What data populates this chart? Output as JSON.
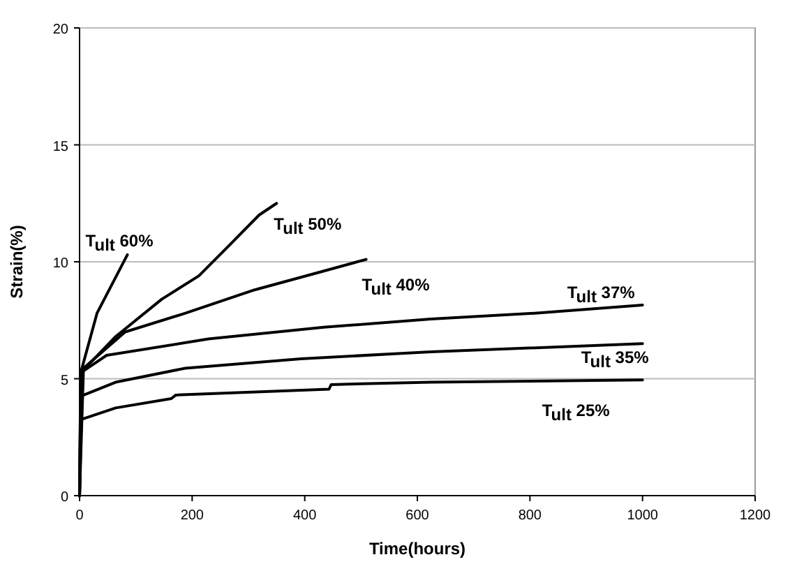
{
  "chart_data": {
    "type": "line",
    "xlabel": "Time(hours)",
    "ylabel": "Strain(%)",
    "xlim": [
      0,
      1200
    ],
    "xticks": [
      0,
      200,
      400,
      600,
      800,
      1000,
      1200
    ],
    "ylim": [
      0,
      20
    ],
    "yticks": [
      0,
      5,
      10,
      15,
      20
    ],
    "grid": "y",
    "line_style": "solid",
    "marker": "none",
    "series": [
      {
        "name": "T$_{ult}$ 60%",
        "color": "#000000",
        "x": [
          0,
          2,
          31,
          85
        ],
        "values": [
          0,
          5.25,
          7.8,
          10.3
        ]
      },
      {
        "name": "T$_{ult}$ 50%",
        "color": "#000000",
        "x": [
          0,
          2,
          64,
          146,
          212,
          270,
          319,
          350
        ],
        "values": [
          0,
          5.25,
          6.8,
          8.4,
          9.4,
          10.8,
          12.0,
          12.5
        ]
      },
      {
        "name": "T$_{ult}$ 40%",
        "color": "#000000",
        "x": [
          0,
          7,
          81,
          188,
          311,
          418,
          509
        ],
        "values": [
          0,
          5.45,
          7.0,
          7.8,
          8.8,
          9.5,
          10.1
        ]
      },
      {
        "name": "T$_{ult}$ 37%",
        "color": "#000000",
        "x": [
          0,
          5,
          48,
          229,
          434,
          624,
          808,
          1000
        ],
        "values": [
          0,
          5.3,
          6.0,
          6.7,
          7.2,
          7.55,
          7.8,
          8.15
        ]
      },
      {
        "name": "T$_{ult}$ 35%",
        "color": "#000000",
        "x": [
          0,
          2,
          64,
          188,
          393,
          624,
          1000
        ],
        "values": [
          0,
          4.25,
          4.85,
          5.45,
          5.85,
          6.15,
          6.5
        ]
      },
      {
        "name": "T$_{ult}$ 25%",
        "color": "#000000",
        "x": [
          0,
          2,
          64,
          163,
          171,
          443,
          447,
          624,
          1000
        ],
        "values": [
          0,
          3.25,
          3.75,
          4.15,
          4.3,
          4.55,
          4.75,
          4.85,
          4.95
        ]
      }
    ]
  }
}
